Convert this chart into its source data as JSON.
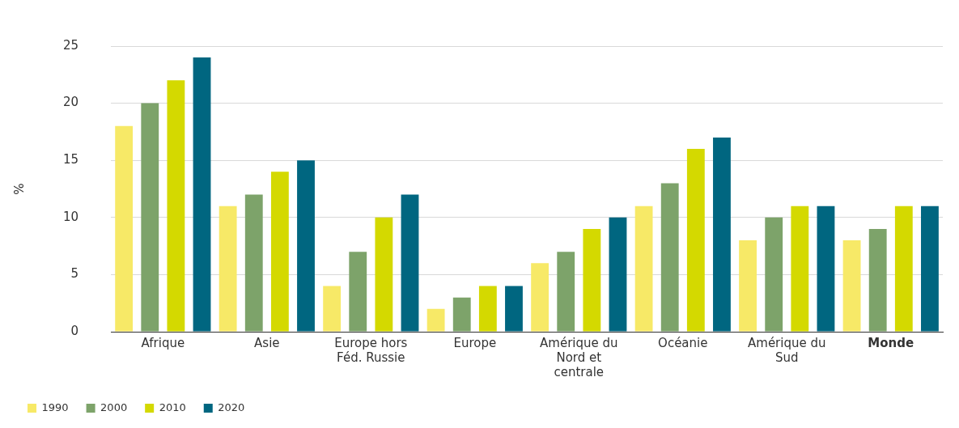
{
  "chart_data": {
    "type": "bar",
    "ylabel": "%",
    "categories": [
      "Afrique",
      "Asie",
      "Europe hors Féd. Russie",
      "Europe",
      "Amérique du Nord et centrale",
      "Océanie",
      "Amérique du Sud",
      "Monde"
    ],
    "series": [
      {
        "name": "1990",
        "color": "#f7e967",
        "values": [
          18,
          11,
          4,
          2,
          6,
          11,
          8,
          8
        ]
      },
      {
        "name": "2000",
        "color": "#7da36a",
        "values": [
          20,
          12,
          7,
          3,
          7,
          13,
          10,
          9
        ]
      },
      {
        "name": "2010",
        "color": "#d4d900",
        "values": [
          22,
          14,
          10,
          4,
          9,
          16,
          11,
          11
        ]
      },
      {
        "name": "2020",
        "color": "#006680",
        "values": [
          24,
          15,
          12,
          4,
          10,
          17,
          11,
          11
        ]
      }
    ],
    "ylim": [
      0,
      25
    ],
    "yticks": [
      0,
      5,
      10,
      15,
      20,
      25
    ],
    "grid": "y",
    "legend": "bottom left"
  }
}
